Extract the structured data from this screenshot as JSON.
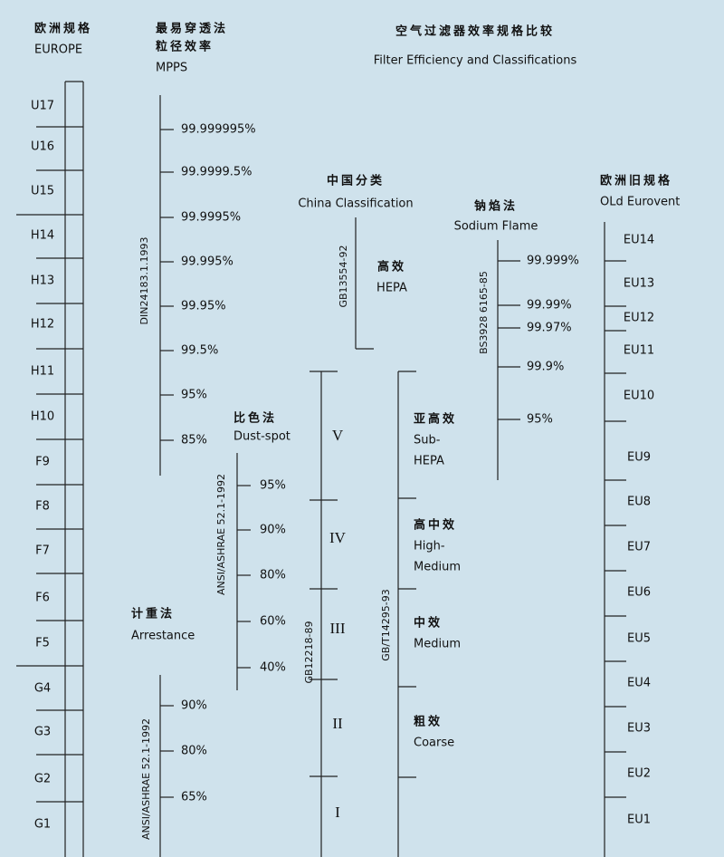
{
  "title": {
    "zh": "空气过滤器效率规格比较",
    "en": "Filter Efficiency and Classifications"
  },
  "europe": {
    "header": [
      "欧洲规格",
      "EUROPE"
    ],
    "classes": [
      "U17",
      "U16",
      "U15",
      "H14",
      "H13",
      "H12",
      "H11",
      "H10",
      "F9",
      "F8",
      "F7",
      "F6",
      "F5",
      "G4",
      "G3",
      "G2",
      "G1"
    ]
  },
  "mpps": {
    "header": [
      "最易穿透法",
      "粒径效率",
      "MPPS"
    ],
    "standard": "DIN24183.1.1993",
    "levels": [
      "99.999995%",
      "99.9999.5%",
      "99.9995%",
      "99.995%",
      "99.95%",
      "99.5%",
      "95%",
      "85%"
    ]
  },
  "dust_spot": {
    "header": [
      "比色法",
      "Dust-spot"
    ],
    "standard": "ANSI/ASHRAE 52.1-1992",
    "levels": [
      "95%",
      "90%",
      "80%",
      "60%",
      "40%"
    ]
  },
  "arrestance": {
    "header": [
      "计重法",
      "Arrestance"
    ],
    "standard": "ANSI/ASHRAE 52.1-1992",
    "levels": [
      "90%",
      "80%",
      "65%"
    ]
  },
  "china": {
    "header": [
      "中国分类",
      "China Classification"
    ],
    "hepa": {
      "standard": "GB13554-92",
      "label": [
        "高效",
        "HEPA"
      ]
    },
    "gb12218": {
      "standard": "GB12218-89",
      "grades": [
        "V",
        "IV",
        "III",
        "II",
        "I"
      ]
    },
    "gb14295": {
      "standard": "GB/T14295-93",
      "grades": [
        [
          "亚高效",
          "Sub-",
          "HEPA"
        ],
        [
          "高中效",
          "High-",
          "Medium"
        ],
        [
          "中效",
          "Medium"
        ],
        [
          "粗效",
          "Coarse"
        ]
      ]
    }
  },
  "sodium_flame": {
    "header": [
      "钠焰法",
      "Sodium Flame"
    ],
    "standard": "BS3928 6165-85",
    "levels": [
      "99.999%",
      "99.99%",
      "99.97%",
      "99.9%",
      "95%"
    ]
  },
  "old_eurovent": {
    "header": [
      "欧洲旧规格",
      "OLd Eurovent"
    ],
    "classes": [
      "EU14",
      "EU13",
      "EU12",
      "EU11",
      "EU10",
      "EU9",
      "EU8",
      "EU7",
      "EU6",
      "EU5",
      "EU4",
      "EU3",
      "EU2",
      "EU1"
    ]
  }
}
